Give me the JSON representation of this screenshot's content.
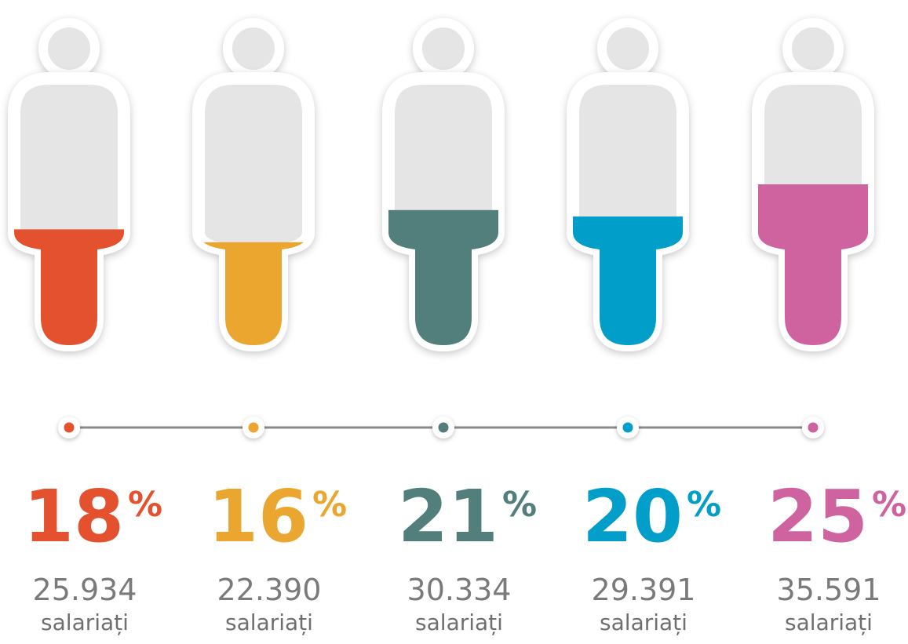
{
  "chart_data": {
    "type": "pictogram",
    "values": [
      18,
      16,
      21,
      20,
      25
    ],
    "unit": "%",
    "colors": [
      "#e4512f",
      "#eaa62e",
      "#527e7b",
      "#009ec9",
      "#cf63a0"
    ],
    "counts": [
      25934,
      22390,
      30334,
      29391,
      35591
    ],
    "count_labels": [
      "25.934",
      "22.390",
      "30.334",
      "29.391",
      "35.591"
    ],
    "caption": "salariați"
  }
}
